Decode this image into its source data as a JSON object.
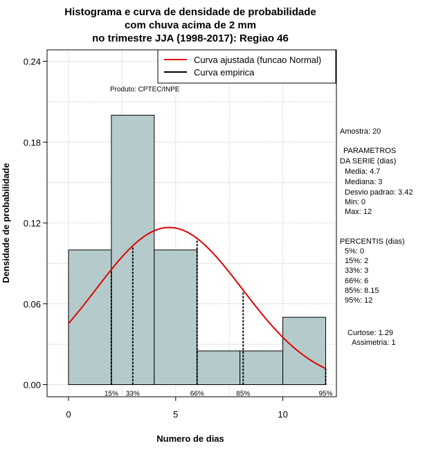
{
  "chart_data": {
    "type": "bar",
    "title_lines": [
      "Histograma e curva de densidade de probabilidade",
      "com chuva acima de 2 mm",
      "no trimestre JJA (1998-2017): Regiao 46"
    ],
    "xlabel": "Numero de dias",
    "ylabel": "Densidade de probabilidade",
    "xlim": [
      -1,
      12.5
    ],
    "ylim": [
      -0.009,
      0.2485
    ],
    "xticks": [
      0,
      5,
      10
    ],
    "yticks": [
      0.0,
      0.06,
      0.12,
      0.18,
      0.24
    ],
    "ytick_labels": [
      "0.00",
      "0.06",
      "0.12",
      "0.18",
      "0.24"
    ],
    "bins": [
      {
        "x0": 0,
        "x1": 2,
        "density": 0.1
      },
      {
        "x0": 2,
        "x1": 4,
        "density": 0.2
      },
      {
        "x0": 4,
        "x1": 6,
        "density": 0.1
      },
      {
        "x0": 6,
        "x1": 8,
        "density": 0.025
      },
      {
        "x0": 8,
        "x1": 10,
        "density": 0.025
      },
      {
        "x0": 10,
        "x1": 12,
        "density": 0.05
      }
    ],
    "normal_curve": {
      "mean": 4.7,
      "sd": 3.42,
      "x_from": 0,
      "x_to": 12
    },
    "percentile_lines": [
      {
        "label": "15%",
        "x": 2
      },
      {
        "label": "33%",
        "x": 3
      },
      {
        "label": "66%",
        "x": 6
      },
      {
        "label": "85%",
        "x": 8.15
      },
      {
        "label": "95%",
        "x": 12
      }
    ],
    "legend": {
      "position": "top-right",
      "entries": [
        {
          "label": "Curva ajustada (funcao Normal)",
          "color": "#e00000"
        },
        {
          "label": "Curva empirica",
          "color": "#000000"
        }
      ]
    },
    "annotation": "Produto: CPTEC/INPE",
    "grid": true
  },
  "stats": {
    "amostra": "Amostra: 20",
    "param_title_1": "PARAMETROS",
    "param_title_2": "DA SERIE (dias)",
    "params": [
      "Media: 4.7",
      "Mediana: 3",
      "Desvio padrao: 3.42",
      "Min: 0",
      "Max: 12"
    ],
    "perc_title": "PERCENTIS (dias)",
    "percentis": [
      "5%: 0",
      "15%: 2",
      "33%: 3",
      "66%: 6",
      "85%: 8.15",
      "95%: 12"
    ],
    "curtose": "Curtose: 1.29",
    "assimetria": "Assimetria: 1"
  },
  "colors": {
    "bar_fill": "#b5cbcb",
    "curve": "#e00000",
    "grid": "#b0b0b0"
  }
}
